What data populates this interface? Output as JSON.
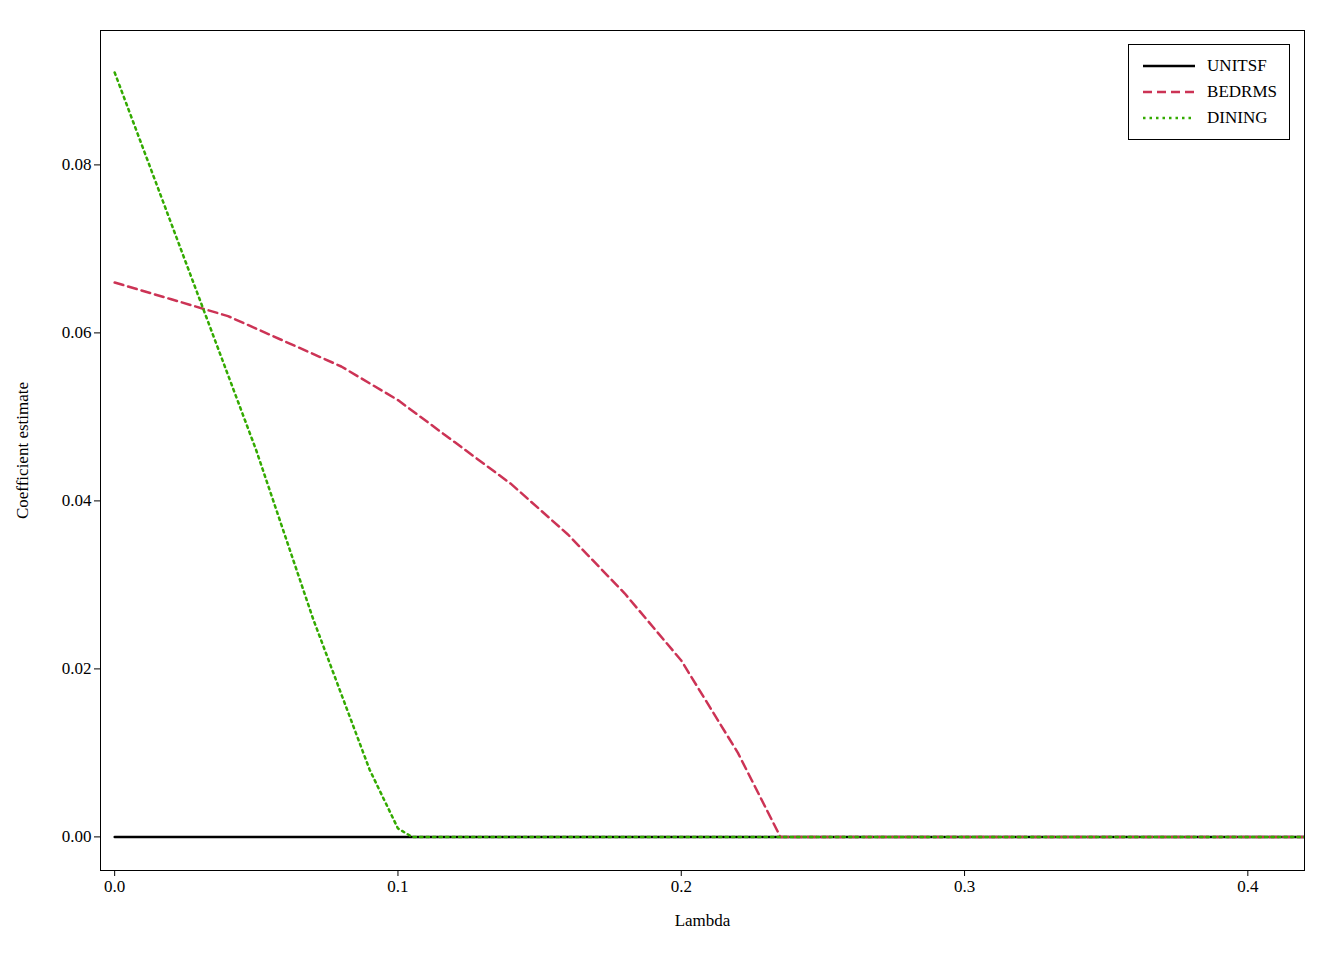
{
  "chart_data": {
    "type": "line",
    "xlabel": "Lambda",
    "ylabel": "Coefficient estimate",
    "xlim": [
      -0.005,
      0.42
    ],
    "ylim": [
      -0.004,
      0.096
    ],
    "xticks": [
      {
        "value": 0.0,
        "label": "0.0"
      },
      0.1,
      0.2,
      0.3,
      0.4
    ],
    "yticks": [
      {
        "value": 0.0,
        "label": "0.00"
      },
      0.02,
      0.04,
      0.06,
      0.08
    ],
    "grid": false,
    "legend": "upper right",
    "series": [
      {
        "name": "UNITSF",
        "color": "#000000",
        "line_style": "solid",
        "x": [
          0.0,
          0.42
        ],
        "values": [
          0.0,
          0.0
        ]
      },
      {
        "name": "BEDRMS",
        "color": "#cc3355",
        "line_style": "dashed",
        "x": [
          0.0,
          0.02,
          0.04,
          0.06,
          0.08,
          0.1,
          0.12,
          0.14,
          0.16,
          0.18,
          0.2,
          0.22,
          0.235,
          0.42
        ],
        "values": [
          0.066,
          0.064,
          0.062,
          0.059,
          0.056,
          0.052,
          0.047,
          0.042,
          0.036,
          0.029,
          0.021,
          0.01,
          0.0,
          0.0
        ]
      },
      {
        "name": "DINING",
        "color": "#33aa00",
        "line_style": "dotted",
        "x": [
          0.0,
          0.01,
          0.02,
          0.03,
          0.04,
          0.05,
          0.06,
          0.07,
          0.08,
          0.09,
          0.1,
          0.105,
          0.42
        ],
        "values": [
          0.091,
          0.082,
          0.073,
          0.064,
          0.055,
          0.046,
          0.036,
          0.026,
          0.017,
          0.008,
          0.001,
          0.0,
          0.0
        ]
      }
    ]
  }
}
